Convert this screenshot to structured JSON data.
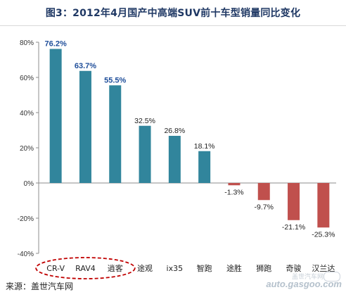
{
  "title": "图3：2012年4月国产中高端SUV前十车型销量同比变化",
  "source": "来源：盖世汽车网",
  "watermark": {
    "cn": "盖世汽车网",
    "en": "auto.gasgoo.com"
  },
  "colors": {
    "positive": "#31859c",
    "negative": "#c0504d",
    "highlight_label": "#1f4e9a",
    "normal_label": "#222222",
    "grid": "#d9d9d9",
    "ellipse": "#c00000"
  },
  "chart_data": {
    "type": "bar",
    "title": "图3：2012年4月国产中高端SUV前十车型销量同比变化",
    "xlabel": "",
    "ylabel": "",
    "ylim": [
      -40,
      80
    ],
    "yticks": [
      -40,
      -20,
      0,
      20,
      40,
      60,
      80
    ],
    "ytick_labels": [
      "-40%",
      "-20%",
      "0%",
      "20%",
      "40%",
      "60%",
      "80%"
    ],
    "grid": false,
    "categories": [
      "CR-V",
      "RAV4",
      "逍客",
      "途观",
      "ix35",
      "智跑",
      "途胜",
      "狮跑",
      "奇骏",
      "汉兰达"
    ],
    "values": [
      76.2,
      63.7,
      55.5,
      32.5,
      26.8,
      18.1,
      -1.3,
      -9.7,
      -21.1,
      -25.3
    ],
    "data_labels": [
      "76.2%",
      "63.7%",
      "55.5%",
      "32.5%",
      "26.8%",
      "18.1%",
      "-1.3%",
      "-9.7%",
      "-21.1%",
      "-25.3%"
    ],
    "highlighted": [
      "CR-V",
      "RAV4",
      "逍客"
    ]
  }
}
